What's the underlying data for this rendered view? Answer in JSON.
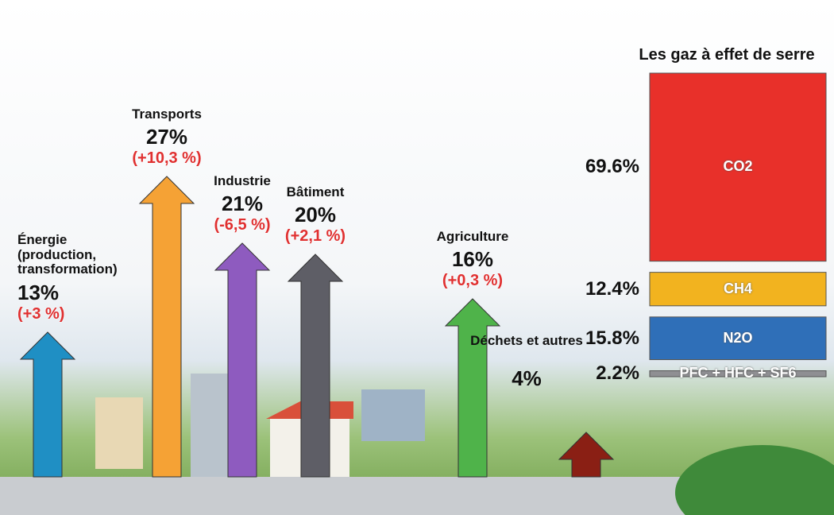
{
  "chart_data": [
    {
      "type": "bar",
      "categories": [
        "Énergie (production, transformation)",
        "Transports",
        "Industrie",
        "Bâtiment",
        "Agriculture",
        "Déchets et autres"
      ],
      "values": [
        13,
        27,
        21,
        20,
        16,
        4
      ],
      "value_labels": [
        "13%",
        "27%",
        "21%",
        "20%",
        "16%",
        "4%"
      ],
      "change_labels": [
        "(+3 %)",
        "(+10,3 %)",
        "(-6,5 %)",
        "(+2,1 %)",
        "(+0,3 %)",
        null
      ],
      "colors": [
        "#1f8fc4",
        "#f5a235",
        "#8e5bbf",
        "#5e5e66",
        "#4fb34a",
        "#8a1f14"
      ]
    },
    {
      "type": "stacked-bar",
      "title": "Les gaz à effet de serre",
      "categories": [
        "CO2",
        "CH4",
        "N2O",
        "PFC + HFC + SF6"
      ],
      "values": [
        69.6,
        12.4,
        15.8,
        2.2
      ],
      "value_labels": [
        "69.6%",
        "12.4%",
        "15.8%",
        "2.2%"
      ],
      "colors": [
        "#e8302a",
        "#f2b31f",
        "#2f6fb8",
        "#8f8f93"
      ]
    }
  ]
}
